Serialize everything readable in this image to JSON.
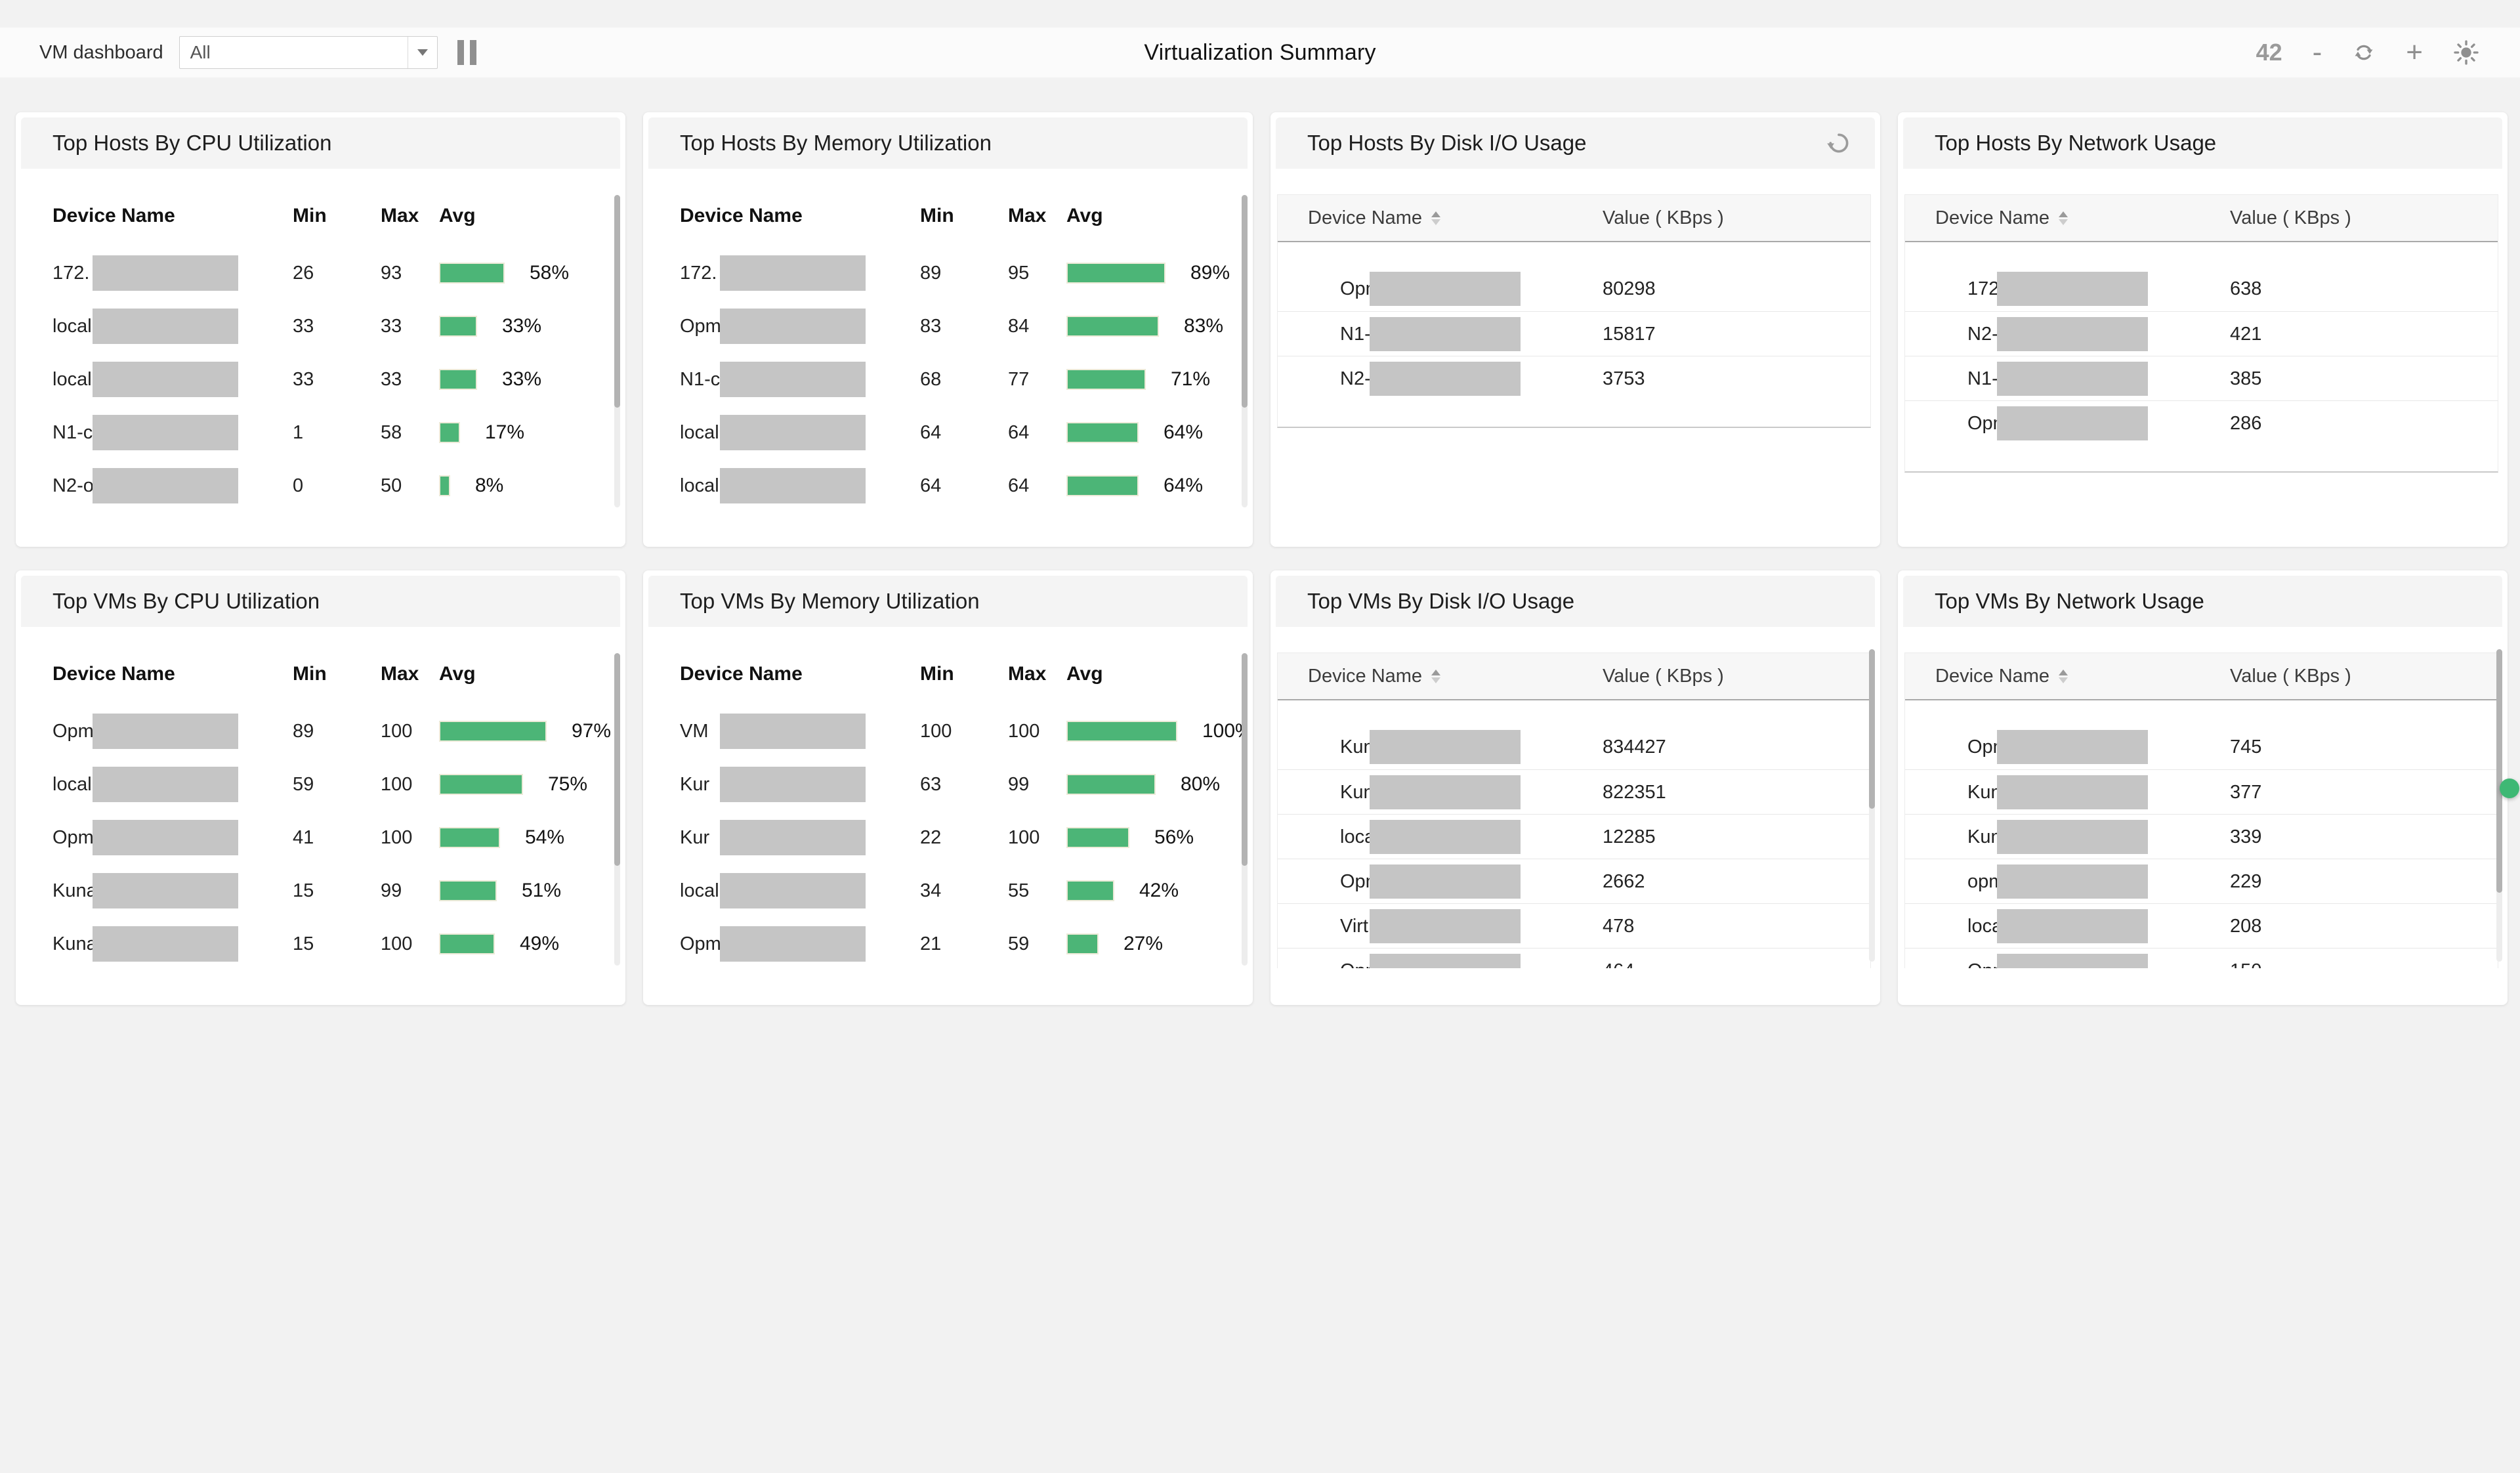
{
  "header": {
    "dashboard_label": "VM dashboard",
    "filter_value": "All",
    "page_title": "Virtualization Summary",
    "widget_count": "42",
    "zoom_out_label": "-",
    "zoom_in_label": "+",
    "icons": {
      "dropdown_arrow": "chevron-down-icon",
      "pause": "pause-icon",
      "refresh": "refresh-icon",
      "brightness": "brightness-icon"
    }
  },
  "colors": {
    "accent_green": "#4CB577",
    "bar_border": "#ECEAD8",
    "redaction_gray": "#C5C5C5",
    "icon_gray": "#8F8F8F",
    "status_dot_green": "#3EB874"
  },
  "panels": [
    {
      "id": "top-hosts-by-cpu-utilization",
      "title": "Top Hosts By CPU Utilization",
      "type": "utilization",
      "columns": [
        "Device Name",
        "Min",
        "Max",
        "Avg"
      ],
      "rows": [
        {
          "name_prefix": "172.",
          "min": "26",
          "max": "93",
          "avg": 58
        },
        {
          "name_prefix": "local",
          "min": "33",
          "max": "33",
          "avg": 33
        },
        {
          "name_prefix": "local",
          "min": "33",
          "max": "33",
          "avg": 33
        },
        {
          "name_prefix": "N1-c",
          "min": "1",
          "max": "58",
          "avg": 17
        },
        {
          "name_prefix": "N2-o",
          "min": "0",
          "max": "50",
          "avg": 8
        }
      ]
    },
    {
      "id": "top-hosts-by-memory-utilization",
      "title": "Top Hosts By Memory Utilization",
      "type": "utilization",
      "columns": [
        "Device Name",
        "Min",
        "Max",
        "Avg"
      ],
      "rows": [
        {
          "name_prefix": "172.",
          "min": "89",
          "max": "95",
          "avg": 89
        },
        {
          "name_prefix": "Opm",
          "min": "83",
          "max": "84",
          "avg": 83
        },
        {
          "name_prefix": "N1-c",
          "min": "68",
          "max": "77",
          "avg": 71
        },
        {
          "name_prefix": "local",
          "min": "64",
          "max": "64",
          "avg": 64
        },
        {
          "name_prefix": "local",
          "min": "64",
          "max": "64",
          "avg": 64
        }
      ]
    },
    {
      "id": "top-hosts-by-disk-io-usage",
      "title": "Top Hosts By Disk I/O Usage",
      "type": "value",
      "refresh_icon": true,
      "columns": [
        "Device Name",
        "Value ( KBps )"
      ],
      "rows": [
        {
          "name_prefix": "Opm",
          "value": "80298"
        },
        {
          "name_prefix": "N1-o",
          "value": "15817"
        },
        {
          "name_prefix": "N2-op",
          "value": "3753"
        }
      ]
    },
    {
      "id": "top-hosts-by-network-usage",
      "title": "Top Hosts By Network Usage",
      "type": "value",
      "columns": [
        "Device Name",
        "Value ( KBps )"
      ],
      "rows": [
        {
          "name_prefix": "172.",
          "value": "638"
        },
        {
          "name_prefix": "N2-c",
          "value": "421"
        },
        {
          "name_prefix": "N1-c",
          "value": "385"
        },
        {
          "name_prefix": "Opm",
          "value": "286"
        }
      ]
    },
    {
      "id": "top-vms-by-cpu-utilization",
      "title": "Top VMs By CPU Utilization",
      "type": "utilization",
      "columns": [
        "Device Name",
        "Min",
        "Max",
        "Avg"
      ],
      "rows": [
        {
          "name_prefix": "Opma",
          "min": "89",
          "max": "100",
          "avg": 97
        },
        {
          "name_prefix": "locall",
          "min": "59",
          "max": "100",
          "avg": 75
        },
        {
          "name_prefix": "Opm",
          "min": "41",
          "max": "100",
          "avg": 54
        },
        {
          "name_prefix": "Kuna",
          "min": "15",
          "max": "99",
          "avg": 51
        },
        {
          "name_prefix": "Kuna",
          "min": "15",
          "max": "100",
          "avg": 49
        }
      ]
    },
    {
      "id": "top-vms-by-memory-utilization",
      "title": "Top VMs By Memory Utilization",
      "type": "utilization",
      "columns": [
        "Device Name",
        "Min",
        "Max",
        "Avg"
      ],
      "rows": [
        {
          "name_prefix": "VM",
          "min": "100",
          "max": "100",
          "avg": 100
        },
        {
          "name_prefix": "Kur",
          "min": "63",
          "max": "99",
          "avg": 80
        },
        {
          "name_prefix": "Kur",
          "min": "22",
          "max": "100",
          "avg": 56
        },
        {
          "name_prefix": "local",
          "min": "34",
          "max": "55",
          "avg": 42
        },
        {
          "name_prefix": "Opm",
          "min": "21",
          "max": "59",
          "avg": 27
        }
      ]
    },
    {
      "id": "top-vms-by-disk-io-usage",
      "title": "Top VMs By Disk I/O Usage",
      "type": "value",
      "columns": [
        "Device Name",
        "Value ( KBps )"
      ],
      "rows": [
        {
          "name_prefix": "Kuna",
          "value": "834427"
        },
        {
          "name_prefix": "Kuna",
          "value": "822351"
        },
        {
          "name_prefix": "local",
          "value": "12285"
        },
        {
          "name_prefix": "Opm",
          "value": "2662"
        },
        {
          "name_prefix": "Virt1",
          "value": "478"
        },
        {
          "name_prefix": "Opme",
          "value": "464"
        }
      ]
    },
    {
      "id": "top-vms-by-network-usage",
      "title": "Top VMs By Network Usage",
      "type": "value",
      "columns": [
        "Device Name",
        "Value ( KBps )"
      ],
      "rows": [
        {
          "name_prefix": "Opm",
          "value": "745"
        },
        {
          "name_prefix": "Kunal-",
          "value": "377"
        },
        {
          "name_prefix": "Kunal-",
          "value": "339"
        },
        {
          "name_prefix": "opm-",
          "value": "229"
        },
        {
          "name_prefix": "locall",
          "value": "208"
        },
        {
          "name_prefix": "Opm",
          "value": "150"
        }
      ]
    }
  ]
}
